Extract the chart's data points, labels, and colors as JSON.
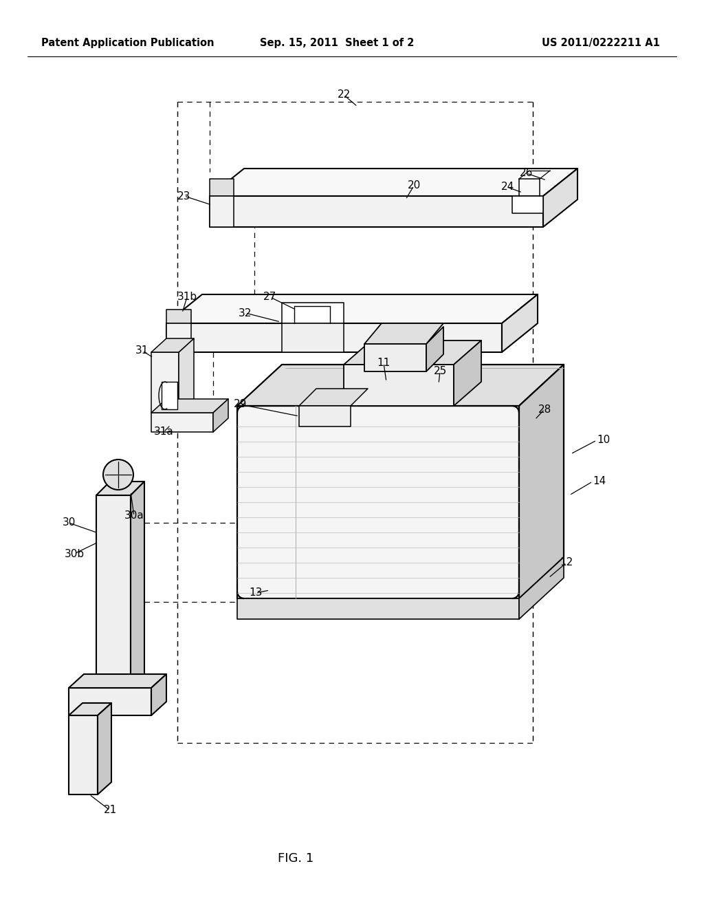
{
  "background_color": "#ffffff",
  "header_left": "Patent Application Publication",
  "header_center": "Sep. 15, 2011  Sheet 1 of 2",
  "header_right": "US 2011/0222211 A1",
  "fig_label": "FIG. 1",
  "header_font_size": 10.5,
  "fig_label_font_size": 13,
  "label_font_size": 11,
  "gray_light": "#f2f2f2",
  "gray_mid": "#e0e0e0",
  "gray_dark": "#c8c8c8",
  "gray_darker": "#b0b0b0"
}
